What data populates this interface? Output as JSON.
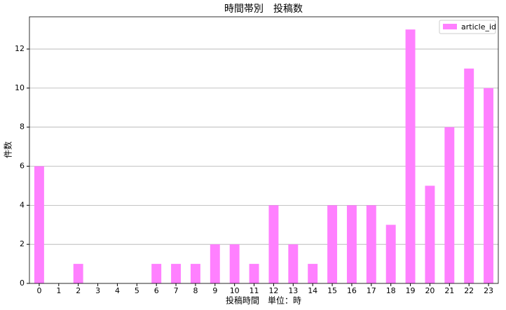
{
  "chart_data": {
    "type": "bar",
    "title": "時間帯別　投稿数",
    "x_label": "投稿時間　単位：時",
    "y_label": "件数",
    "categories": [
      "0",
      "1",
      "2",
      "3",
      "4",
      "5",
      "6",
      "7",
      "8",
      "9",
      "10",
      "11",
      "12",
      "13",
      "14",
      "15",
      "16",
      "17",
      "18",
      "19",
      "20",
      "21",
      "22",
      "23"
    ],
    "series": [
      {
        "name": "article_id",
        "color": "#ff80ff",
        "values": [
          6,
          0,
          1,
          0,
          0,
          0,
          1,
          1,
          1,
          2,
          2,
          1,
          4,
          2,
          1,
          4,
          4,
          4,
          3,
          13,
          5,
          8,
          11,
          10
        ]
      }
    ],
    "ylim": [
      0,
      13.65
    ],
    "yticks": [
      0,
      2,
      4,
      6,
      8,
      10,
      12
    ],
    "grid": true,
    "legend": "upper right"
  }
}
